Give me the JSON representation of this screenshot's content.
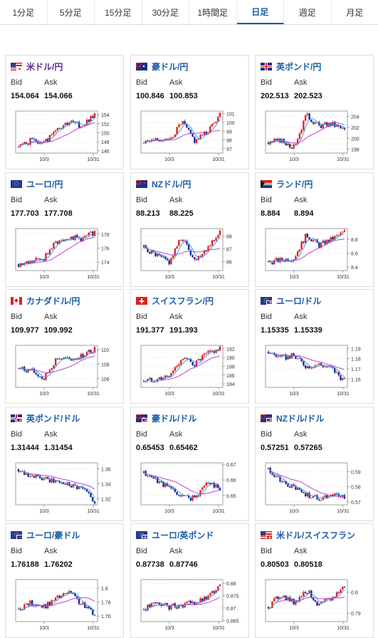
{
  "tabs": [
    "1分足",
    "5分足",
    "15分足",
    "30分足",
    "1時間足",
    "日足",
    "週足",
    "月足"
  ],
  "active_tab": 5,
  "labels": {
    "bid": "Bid",
    "ask": "Ask"
  },
  "x_ticks": [
    "10/3",
    "10/31"
  ],
  "colors": {
    "up": "#e02020",
    "down": "#1a2a9a",
    "ma_fast": "#3aa0dc",
    "ma_slow": "#c040d0",
    "grid": "#e0e0e0",
    "axis": "#888888"
  },
  "cards": [
    {
      "pair": "米ドル/円",
      "flag": "us-jp",
      "bid": "154.064",
      "ask": "154.066",
      "style": "visited",
      "chart_data": {
        "type": "candlestick",
        "y_ticks": [
          "154",
          "152",
          "150",
          "148",
          "146"
        ],
        "ylim": [
          145.5,
          154.8
        ],
        "trend": [
          0.15,
          0.3,
          0.25,
          0.55,
          0.72,
          0.65,
          0.95
        ],
        "seed": 1
      }
    },
    {
      "pair": "豪ドル/円",
      "flag": "au",
      "bid": "100.846",
      "ask": "100.853",
      "chart_data": {
        "type": "candlestick",
        "y_ticks": [
          "101",
          "100",
          "99",
          "98",
          "97"
        ],
        "ylim": [
          96.5,
          101.3
        ],
        "trend": [
          0.25,
          0.35,
          0.3,
          0.75,
          0.3,
          0.5,
          0.95
        ],
        "seed": 2
      }
    },
    {
      "pair": "英ポンド/円",
      "flag": "gb",
      "bid": "202.513",
      "ask": "202.523",
      "chart_data": {
        "type": "candlestick",
        "y_ticks": [
          "204",
          "202",
          "200",
          "198"
        ],
        "ylim": [
          197.3,
          205
        ],
        "trend": [
          0.25,
          0.3,
          0.15,
          0.9,
          0.65,
          0.7,
          0.55
        ],
        "seed": 3
      }
    },
    {
      "pair": "ユーロ/円",
      "flag": "eu",
      "bid": "177.703",
      "ask": "177.708",
      "chart_data": {
        "type": "candlestick",
        "y_ticks": [
          "178",
          "176",
          "174"
        ],
        "ylim": [
          172.8,
          178.8
        ],
        "trend": [
          0.15,
          0.2,
          0.3,
          0.7,
          0.8,
          0.75,
          0.92
        ],
        "seed": 4
      }
    },
    {
      "pair": "NZドル/円",
      "flag": "nz",
      "bid": "88.213",
      "ask": "88.225",
      "chart_data": {
        "type": "candlestick",
        "y_ticks": [
          "88",
          "87",
          "86"
        ],
        "ylim": [
          85.3,
          88.6
        ],
        "trend": [
          0.55,
          0.35,
          0.2,
          0.8,
          0.25,
          0.55,
          0.92
        ],
        "seed": 5
      }
    },
    {
      "pair": "ランド/円",
      "flag": "za",
      "bid": "8.884",
      "ask": "8.894",
      "chart_data": {
        "type": "candlestick",
        "y_ticks": [
          "8.8",
          "8.6",
          "8.4"
        ],
        "ylim": [
          8.35,
          8.95
        ],
        "trend": [
          0.2,
          0.25,
          0.3,
          0.85,
          0.6,
          0.75,
          0.92
        ],
        "seed": 6
      }
    },
    {
      "pair": "カナダドル/円",
      "flag": "ca",
      "bid": "109.977",
      "ask": "109.992",
      "chart_data": {
        "type": "candlestick",
        "y_ticks": [
          "110",
          "108",
          "106"
        ],
        "ylim": [
          104.8,
          110.6
        ],
        "trend": [
          0.45,
          0.4,
          0.2,
          0.7,
          0.65,
          0.75,
          0.92
        ],
        "seed": 7
      }
    },
    {
      "pair": "スイスフラン/円",
      "flag": "ch",
      "bid": "191.377",
      "ask": "191.393",
      "chart_data": {
        "type": "candlestick",
        "y_ticks": [
          "192",
          "190",
          "188",
          "186",
          "184"
        ],
        "ylim": [
          183.2,
          192.8
        ],
        "trend": [
          0.15,
          0.2,
          0.25,
          0.7,
          0.55,
          0.8,
          0.92
        ],
        "seed": 8
      }
    },
    {
      "pair": "ユーロ/ドル",
      "flag": "eu-us",
      "bid": "1.15335",
      "ask": "1.15339",
      "chart_data": {
        "type": "candlestick",
        "y_ticks": [
          "1.19",
          "1.18",
          "1.17",
          "1.16"
        ],
        "ylim": [
          1.152,
          1.193
        ],
        "trend": [
          0.85,
          0.7,
          0.75,
          0.5,
          0.55,
          0.45,
          0.15
        ],
        "seed": 9
      }
    },
    {
      "pair": "英ポンド/ドル",
      "flag": "gb-us",
      "bid": "1.31444",
      "ask": "1.31454",
      "chart_data": {
        "type": "candlestick",
        "y_ticks": [
          "1.36",
          "1.34",
          "1.32"
        ],
        "ylim": [
          1.312,
          1.368
        ],
        "trend": [
          0.85,
          0.7,
          0.6,
          0.55,
          0.5,
          0.4,
          0.1
        ],
        "seed": 10
      }
    },
    {
      "pair": "豪ドル/ドル",
      "flag": "au-us",
      "bid": "0.65453",
      "ask": "0.65462",
      "chart_data": {
        "type": "candlestick",
        "y_ticks": [
          "0.67",
          "0.66",
          "0.65"
        ],
        "ylim": [
          0.644,
          0.671
        ],
        "trend": [
          0.75,
          0.6,
          0.4,
          0.2,
          0.15,
          0.55,
          0.4
        ],
        "seed": 11
      }
    },
    {
      "pair": "NZドル/ドル",
      "flag": "nz-us",
      "bid": "0.57251",
      "ask": "0.57265",
      "chart_data": {
        "type": "candlestick",
        "y_ticks": [
          "0.59",
          "0.58",
          "0.57"
        ],
        "ylim": [
          0.568,
          0.596
        ],
        "trend": [
          0.85,
          0.55,
          0.4,
          0.25,
          0.15,
          0.25,
          0.2
        ],
        "seed": 12
      }
    },
    {
      "pair": "ユーロ/豪ドル",
      "flag": "eu-au",
      "bid": "1.76188",
      "ask": "1.76202",
      "chart_data": {
        "type": "candlestick",
        "y_ticks": [
          "1.8",
          "1.78",
          "1.76"
        ],
        "ylim": [
          1.752,
          1.812
        ],
        "trend": [
          0.3,
          0.45,
          0.35,
          0.55,
          0.7,
          0.4,
          0.2
        ],
        "seed": 13
      }
    },
    {
      "pair": "ユーロ/英ポンド",
      "flag": "eu-gb",
      "bid": "0.87738",
      "ask": "0.87746",
      "chart_data": {
        "type": "candlestick",
        "y_ticks": [
          "0.88",
          "0.875",
          "0.87",
          "0.865"
        ],
        "ylim": [
          0.8645,
          0.8815
        ],
        "trend": [
          0.3,
          0.45,
          0.35,
          0.4,
          0.45,
          0.55,
          0.92
        ],
        "seed": 14
      }
    },
    {
      "pair": "米ドル/スイスフラン",
      "flag": "us-ch",
      "bid": "0.80503",
      "ask": "0.80518",
      "chart_data": {
        "type": "candlestick",
        "y_ticks": [
          "0.8",
          "0.79"
        ],
        "ylim": [
          0.786,
          0.806
        ],
        "trend": [
          0.35,
          0.65,
          0.45,
          0.75,
          0.4,
          0.55,
          0.85
        ],
        "seed": 15
      }
    }
  ]
}
